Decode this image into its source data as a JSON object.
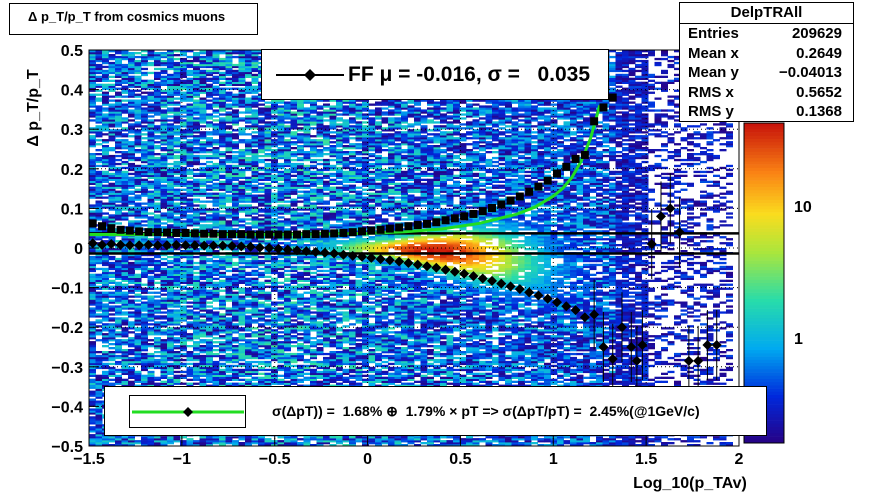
{
  "title": "Δ p_T/p_T from cosmics muons",
  "ylabel": "Δ p_T/p_T",
  "xlabel": "Log_10(p_TAv)",
  "xticks": [
    "−1.5",
    "−1",
    "−0.5",
    "0",
    "0.5",
    "1",
    "1.5",
    "2"
  ],
  "yticks": [
    "−0.5",
    "−0.4",
    "−0.3",
    "−0.2",
    "−0.1",
    "0",
    "0.1",
    "0.2",
    "0.3",
    "0.4",
    "0.5"
  ],
  "colz_ticks": [
    "1",
    "10"
  ],
  "stats": {
    "name": "DelpTRAll",
    "rows": [
      {
        "label": "Entries",
        "value": "209629"
      },
      {
        "label": "Mean x",
        "value": "0.2649"
      },
      {
        "label": "Mean y",
        "value": "−0.04013"
      },
      {
        "label": "RMS x",
        "value": "0.5652"
      },
      {
        "label": "RMS y",
        "value": "0.1368"
      }
    ]
  },
  "ff_legend": "FF μ = -0.016, σ =   0.035",
  "resolution_legend": "σ(ΔpT)) =  1.68% ⊕  1.79% × pT => σ(ΔpT/pT) =  2.45%(@1GeV/c)",
  "colors": {
    "fit_curve": "#22dd22",
    "markers": "#000000"
  },
  "chart_data": {
    "type": "heatmap",
    "xlim": [
      -1.5,
      2.0
    ],
    "ylim": [
      -0.5,
      0.5
    ],
    "grid": true,
    "z_scale": "log",
    "series": [
      {
        "marker": "square",
        "x": [
          -1.48,
          -1.43,
          -1.38,
          -1.33,
          -1.28,
          -1.23,
          -1.18,
          -1.13,
          -1.08,
          -1.03,
          -0.98,
          -0.93,
          -0.88,
          -0.83,
          -0.78,
          -0.73,
          -0.68,
          -0.63,
          -0.58,
          -0.53,
          -0.48,
          -0.43,
          -0.38,
          -0.33,
          -0.28,
          -0.23,
          -0.18,
          -0.13,
          -0.08,
          -0.03,
          0.02,
          0.07,
          0.12,
          0.17,
          0.22,
          0.27,
          0.32,
          0.37,
          0.42,
          0.47,
          0.52,
          0.57,
          0.62,
          0.67,
          0.72,
          0.77,
          0.82,
          0.87,
          0.92,
          0.97,
          1.02,
          1.07,
          1.12,
          1.17,
          1.22,
          1.27,
          1.32
        ],
        "y": [
          0.062,
          0.055,
          0.05,
          0.046,
          0.044,
          0.042,
          0.04,
          0.04,
          0.039,
          0.038,
          0.038,
          0.037,
          0.036,
          0.036,
          0.035,
          0.035,
          0.035,
          0.034,
          0.034,
          0.034,
          0.034,
          0.034,
          0.034,
          0.035,
          0.035,
          0.036,
          0.037,
          0.038,
          0.04,
          0.042,
          0.044,
          0.046,
          0.049,
          0.052,
          0.055,
          0.058,
          0.061,
          0.065,
          0.07,
          0.075,
          0.08,
          0.086,
          0.093,
          0.101,
          0.11,
          0.12,
          0.13,
          0.142,
          0.155,
          0.17,
          0.188,
          0.205,
          0.225,
          0.235,
          0.32,
          0.355,
          0.38
        ]
      },
      {
        "marker": "diamond",
        "x": [
          -1.48,
          -1.43,
          -1.38,
          -1.33,
          -1.28,
          -1.23,
          -1.18,
          -1.13,
          -1.08,
          -1.03,
          -0.98,
          -0.93,
          -0.88,
          -0.83,
          -0.78,
          -0.73,
          -0.68,
          -0.63,
          -0.58,
          -0.53,
          -0.48,
          -0.43,
          -0.38,
          -0.33,
          -0.28,
          -0.23,
          -0.18,
          -0.13,
          -0.08,
          -0.03,
          0.02,
          0.07,
          0.12,
          0.17,
          0.22,
          0.27,
          0.32,
          0.37,
          0.42,
          0.47,
          0.52,
          0.57,
          0.62,
          0.67,
          0.72,
          0.77,
          0.82,
          0.87,
          0.92,
          0.97,
          1.02,
          1.07,
          1.12,
          1.17,
          1.22,
          1.27,
          1.32,
          1.37,
          1.42,
          1.45,
          1.48,
          1.53,
          1.58,
          1.63,
          1.68,
          1.73,
          1.78,
          1.83,
          1.88
        ],
        "y": [
          0.012,
          0.008,
          0.01,
          0.008,
          0.007,
          0.007,
          0.008,
          0.007,
          0.007,
          0.008,
          0.007,
          0.007,
          0.006,
          0.006,
          0.006,
          0.005,
          0.004,
          0.003,
          0.001,
          0.0,
          -0.002,
          -0.004,
          -0.006,
          -0.008,
          -0.01,
          -0.012,
          -0.014,
          -0.017,
          -0.02,
          -0.022,
          -0.025,
          -0.028,
          -0.031,
          -0.034,
          -0.038,
          -0.042,
          -0.046,
          -0.05,
          -0.055,
          -0.06,
          -0.065,
          -0.071,
          -0.077,
          -0.083,
          -0.09,
          -0.097,
          -0.104,
          -0.112,
          -0.12,
          -0.128,
          -0.137,
          -0.147,
          -0.157,
          -0.175,
          -0.168,
          -0.25,
          -0.28,
          -0.2,
          -0.25,
          -0.285,
          -0.245,
          0.01,
          0.08,
          0.1,
          0.04,
          -0.285,
          -0.285,
          -0.245,
          -0.245
        ]
      }
    ],
    "fit_curve_x": [
      -1.5,
      -1.2,
      -0.9,
      -0.6,
      -0.3,
      0.0,
      0.2,
      0.4,
      0.6,
      0.8,
      0.9,
      1.0,
      1.05,
      1.1,
      1.15,
      1.2,
      1.25
    ],
    "fit_curve_y": [
      0.034,
      0.034,
      0.034,
      0.034,
      0.035,
      0.037,
      0.041,
      0.048,
      0.062,
      0.085,
      0.103,
      0.131,
      0.15,
      0.178,
      0.219,
      0.276,
      0.36
    ],
    "hlines": [
      0.037,
      -0.014
    ]
  }
}
